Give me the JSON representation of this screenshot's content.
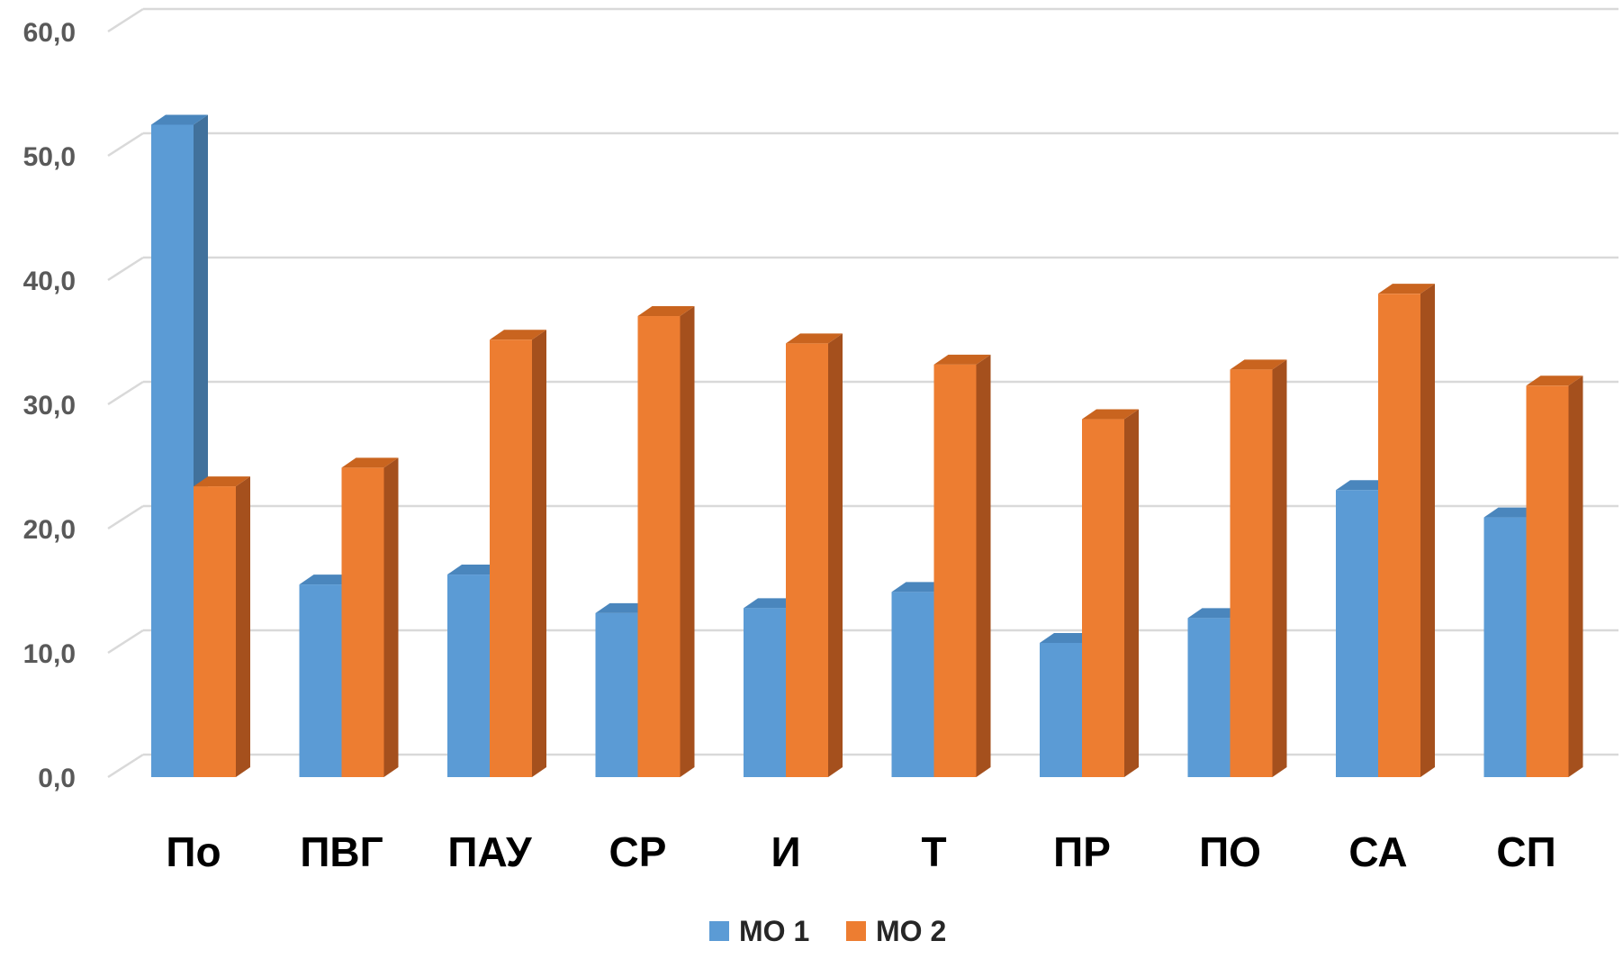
{
  "chart_data": {
    "type": "bar",
    "categories": [
      "По",
      "ПВГ",
      "ПАУ",
      "СР",
      "И",
      "Т",
      "ПР",
      "ПО",
      "СА",
      "СП"
    ],
    "series": [
      {
        "name": "МО 1",
        "values": [
          52.5,
          15.5,
          16.3,
          13.2,
          13.6,
          14.9,
          10.8,
          12.8,
          23.1,
          20.9
        ],
        "color": "#5B9BD5",
        "side_color": "#41719C",
        "top_color": "#4A86BD"
      },
      {
        "name": "МО 2",
        "values": [
          23.4,
          24.9,
          35.2,
          37.1,
          34.9,
          33.2,
          28.8,
          32.8,
          38.9,
          31.5
        ],
        "color": "#ED7D31",
        "side_color": "#A5501D",
        "top_color": "#C9641F"
      }
    ],
    "yticks": [
      "0,0",
      "10,0",
      "20,0",
      "30,0",
      "40,0",
      "50,0",
      "60,0"
    ],
    "ylim": [
      0,
      60
    ],
    "grid": true,
    "legend": "bottom",
    "style": "3d-clustered-column"
  }
}
